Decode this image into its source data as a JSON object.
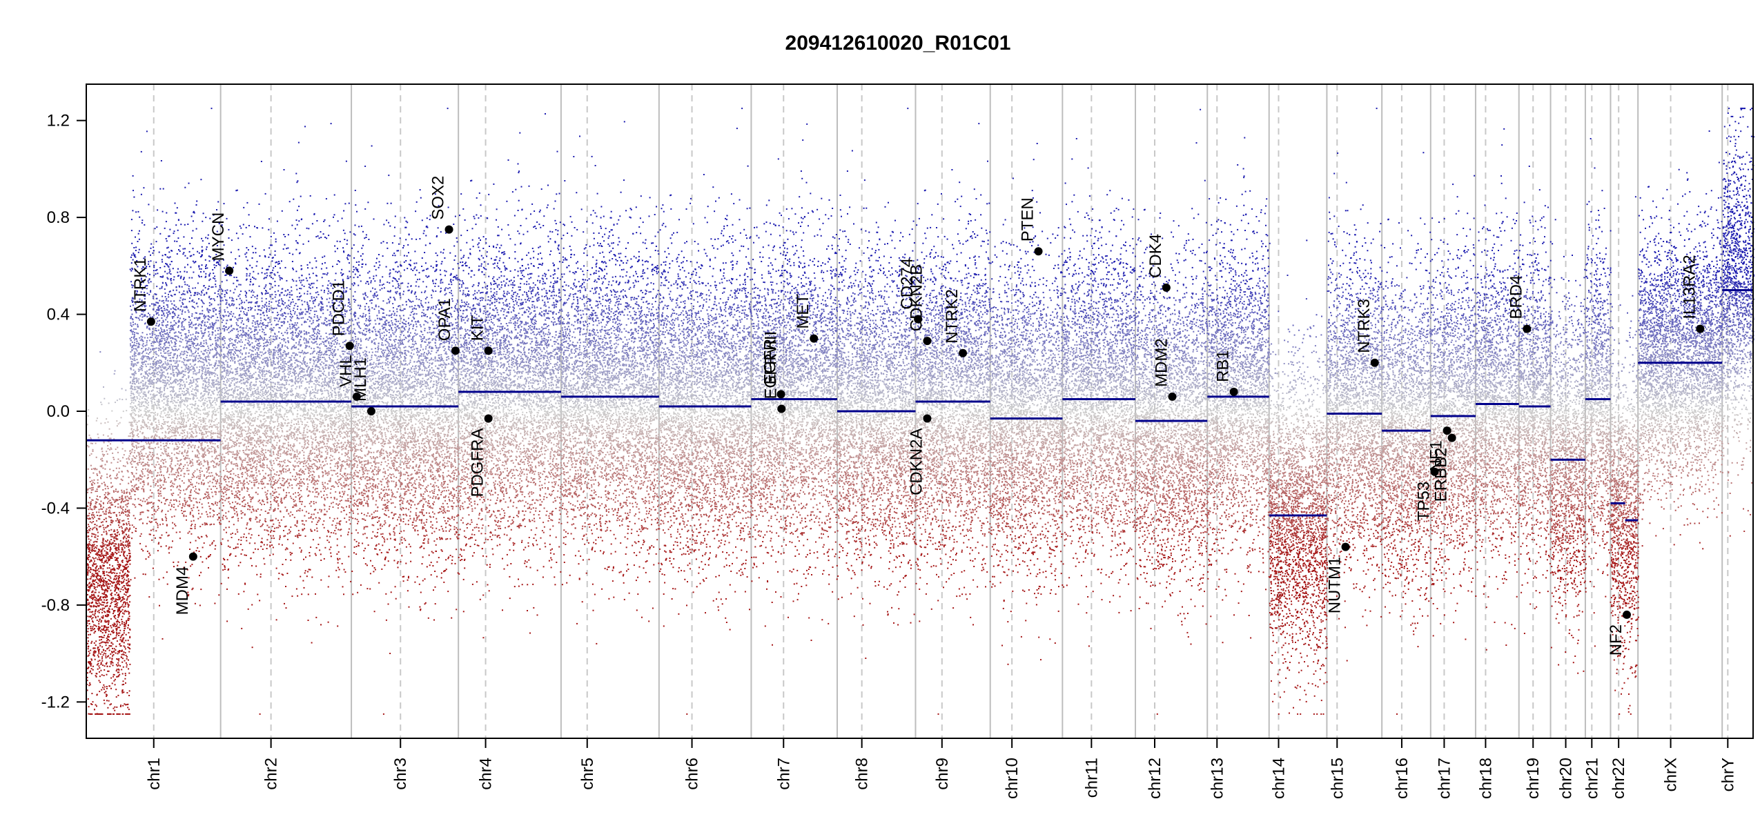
{
  "chart_data": {
    "type": "scatter",
    "title": "209412610020_R01C01",
    "xlabel": "",
    "ylabel": "",
    "ylim": [
      -1.35,
      1.35
    ],
    "yticks": [
      -1.2,
      -0.8,
      -0.4,
      0.0,
      0.4,
      0.8,
      1.2
    ],
    "ytick_labels": [
      "-1.2",
      "-0.8",
      "-0.4",
      "0.0",
      "0.4",
      "0.8",
      "1.2"
    ],
    "colors": {
      "gain": "#1a1aa8",
      "loss": "#a81a1a",
      "neutral": "#c8c8c8",
      "segment": "#00008b",
      "gene": "#000000"
    },
    "chromosomes": [
      {
        "name": "chr1",
        "start": 0.0,
        "end": 248.9,
        "centromere": 125.0
      },
      {
        "name": "chr2",
        "start": 248.9,
        "end": 491.1,
        "centromere": 93.3
      },
      {
        "name": "chr3",
        "start": 491.1,
        "end": 689.4,
        "centromere": 91.0
      },
      {
        "name": "chr4",
        "start": 689.4,
        "end": 879.6,
        "centromere": 50.4
      },
      {
        "name": "chr5",
        "start": 879.6,
        "end": 1061.1,
        "centromere": 48.4
      },
      {
        "name": "chr6",
        "start": 1061.1,
        "end": 1231.9,
        "centromere": 61.0
      },
      {
        "name": "chr7",
        "start": 1231.9,
        "end": 1391.2,
        "centromere": 59.9
      },
      {
        "name": "chr8",
        "start": 1391.2,
        "end": 1536.3,
        "centromere": 45.6
      },
      {
        "name": "chr9",
        "start": 1536.3,
        "end": 1674.7,
        "centromere": 49.0
      },
      {
        "name": "chr10",
        "start": 1674.7,
        "end": 1808.5,
        "centromere": 40.2
      },
      {
        "name": "chr11",
        "start": 1808.5,
        "end": 1943.6,
        "centromere": 53.7
      },
      {
        "name": "chr12",
        "start": 1943.6,
        "end": 2076.9,
        "centromere": 35.8
      },
      {
        "name": "chr13",
        "start": 2076.9,
        "end": 2191.3,
        "centromere": 17.9
      },
      {
        "name": "chr14",
        "start": 2191.3,
        "end": 2298.3,
        "centromere": 17.6
      },
      {
        "name": "chr15",
        "start": 2298.3,
        "end": 2400.3,
        "centromere": 19.0
      },
      {
        "name": "chr16",
        "start": 2400.3,
        "end": 2490.6,
        "centromere": 36.8
      },
      {
        "name": "chr17",
        "start": 2490.6,
        "end": 2573.9,
        "centromere": 25.1
      },
      {
        "name": "chr18",
        "start": 2573.9,
        "end": 2654.2,
        "centromere": 18.5
      },
      {
        "name": "chr19",
        "start": 2654.2,
        "end": 2712.8,
        "centromere": 26.2
      },
      {
        "name": "chr20",
        "start": 2712.8,
        "end": 2777.2,
        "centromere": 28.1
      },
      {
        "name": "chr21",
        "start": 2777.2,
        "end": 2823.9,
        "centromere": 12.0
      },
      {
        "name": "chr22",
        "start": 2823.9,
        "end": 2874.7,
        "centromere": 15.0
      },
      {
        "name": "chrX",
        "start": 2874.7,
        "end": 3030.7,
        "centromere": 60.6
      },
      {
        "name": "chrY",
        "start": 3030.7,
        "end": 3088.0,
        "centromere": 10.4
      }
    ],
    "segments": [
      {
        "start": 0.0,
        "end": 248.9,
        "value": -0.12
      },
      {
        "start": 248.9,
        "end": 491.1,
        "value": 0.04
      },
      {
        "start": 491.1,
        "end": 689.4,
        "value": 0.02
      },
      {
        "start": 689.4,
        "end": 879.6,
        "value": 0.08
      },
      {
        "start": 879.6,
        "end": 1061.1,
        "value": 0.06
      },
      {
        "start": 1061.1,
        "end": 1231.9,
        "value": 0.02
      },
      {
        "start": 1231.9,
        "end": 1391.2,
        "value": 0.05
      },
      {
        "start": 1391.2,
        "end": 1536.3,
        "value": 0.0
      },
      {
        "start": 1536.3,
        "end": 1674.7,
        "value": 0.04
      },
      {
        "start": 1674.7,
        "end": 1808.5,
        "value": -0.03
      },
      {
        "start": 1808.5,
        "end": 1943.6,
        "value": 0.05
      },
      {
        "start": 1943.6,
        "end": 2076.9,
        "value": -0.04
      },
      {
        "start": 2076.9,
        "end": 2191.3,
        "value": 0.06
      },
      {
        "start": 2191.3,
        "end": 2298.3,
        "value": -0.43
      },
      {
        "start": 2298.3,
        "end": 2400.3,
        "value": -0.01
      },
      {
        "start": 2400.3,
        "end": 2490.6,
        "value": -0.08
      },
      {
        "start": 2490.6,
        "end": 2573.9,
        "value": -0.02
      },
      {
        "start": 2573.9,
        "end": 2654.2,
        "value": 0.03
      },
      {
        "start": 2654.2,
        "end": 2712.8,
        "value": 0.02
      },
      {
        "start": 2712.8,
        "end": 2777.2,
        "value": -0.2
      },
      {
        "start": 2777.2,
        "end": 2823.9,
        "value": 0.05
      },
      {
        "start": 2823.9,
        "end": 2851.0,
        "value": -0.38
      },
      {
        "start": 2851.0,
        "end": 2874.7,
        "value": -0.45
      },
      {
        "start": 2874.7,
        "end": 3030.7,
        "value": 0.2
      },
      {
        "start": 3030.7,
        "end": 3088.0,
        "value": 0.5
      }
    ],
    "probe_profiles": [
      {
        "chr": "chr1",
        "from": 0.0,
        "to": 80.0,
        "mean": -0.68,
        "sd": 0.28
      },
      {
        "chr": "chr1",
        "from": 80.0,
        "to": 248.9,
        "mean": 0.08,
        "sd": 0.3
      },
      {
        "chr": "chr2",
        "from": 0.0,
        "to": 242.2,
        "mean": 0.04,
        "sd": 0.3
      },
      {
        "chr": "chr3",
        "from": 0.0,
        "to": 198.3,
        "mean": 0.02,
        "sd": 0.3
      },
      {
        "chr": "chr4",
        "from": 0.0,
        "to": 190.2,
        "mean": 0.08,
        "sd": 0.3
      },
      {
        "chr": "chr5",
        "from": 0.0,
        "to": 181.5,
        "mean": 0.06,
        "sd": 0.3
      },
      {
        "chr": "chr6",
        "from": 0.0,
        "to": 170.8,
        "mean": 0.02,
        "sd": 0.3
      },
      {
        "chr": "chr7",
        "from": 0.0,
        "to": 159.3,
        "mean": 0.05,
        "sd": 0.3
      },
      {
        "chr": "chr8",
        "from": 0.0,
        "to": 145.1,
        "mean": 0.0,
        "sd": 0.3
      },
      {
        "chr": "chr9",
        "from": 0.0,
        "to": 138.4,
        "mean": 0.04,
        "sd": 0.3
      },
      {
        "chr": "chr10",
        "from": 0.0,
        "to": 133.8,
        "mean": -0.03,
        "sd": 0.3
      },
      {
        "chr": "chr11",
        "from": 0.0,
        "to": 135.1,
        "mean": 0.05,
        "sd": 0.3
      },
      {
        "chr": "chr12",
        "from": 0.0,
        "to": 133.3,
        "mean": -0.04,
        "sd": 0.3
      },
      {
        "chr": "chr13",
        "from": 0.0,
        "to": 114.4,
        "mean": 0.06,
        "sd": 0.3
      },
      {
        "chr": "chr14",
        "from": 0.0,
        "to": 107.0,
        "mean": -0.43,
        "sd": 0.3
      },
      {
        "chr": "chr15",
        "from": 0.0,
        "to": 102.0,
        "mean": -0.01,
        "sd": 0.3
      },
      {
        "chr": "chr16",
        "from": 0.0,
        "to": 90.3,
        "mean": -0.08,
        "sd": 0.3
      },
      {
        "chr": "chr17",
        "from": 0.0,
        "to": 83.3,
        "mean": -0.02,
        "sd": 0.3
      },
      {
        "chr": "chr18",
        "from": 0.0,
        "to": 80.3,
        "mean": 0.03,
        "sd": 0.3
      },
      {
        "chr": "chr19",
        "from": 0.0,
        "to": 58.6,
        "mean": 0.02,
        "sd": 0.3
      },
      {
        "chr": "chr20",
        "from": 0.0,
        "to": 64.4,
        "mean": -0.2,
        "sd": 0.3
      },
      {
        "chr": "chr21",
        "from": 0.0,
        "to": 46.7,
        "mean": 0.05,
        "sd": 0.3
      },
      {
        "chr": "chr22",
        "from": 0.0,
        "to": 50.8,
        "mean": -0.4,
        "sd": 0.3
      },
      {
        "chr": "chrX",
        "from": 0.0,
        "to": 156.0,
        "mean": 0.2,
        "sd": 0.25
      },
      {
        "chr": "chrY",
        "from": 0.0,
        "to": 57.3,
        "mean": 0.5,
        "sd": 0.3
      }
    ],
    "genes": [
      {
        "name": "NTRK1",
        "pos": 120.0,
        "value": 0.37,
        "label_side": "above"
      },
      {
        "name": "MDM4",
        "pos": 198.0,
        "value": -0.6,
        "label_side": "below"
      },
      {
        "name": "MYCN",
        "pos": 264.9,
        "value": 0.58,
        "label_side": "above"
      },
      {
        "name": "PDCD1",
        "pos": 488.0,
        "value": 0.27,
        "label_side": "above"
      },
      {
        "name": "VHL",
        "pos": 501.0,
        "value": 0.06,
        "label_side": "above"
      },
      {
        "name": "MLH1",
        "pos": 528.0,
        "value": 0.0,
        "label_side": "above"
      },
      {
        "name": "SOX2",
        "pos": 672.0,
        "value": 0.75,
        "label_side": "above"
      },
      {
        "name": "OPA1",
        "pos": 684.0,
        "value": 0.25,
        "label_side": "above"
      },
      {
        "name": "KIT",
        "pos": 745.0,
        "value": 0.25,
        "label_side": "above"
      },
      {
        "name": "PDGFRA",
        "pos": 745.0,
        "value": -0.03,
        "label_side": "below"
      },
      {
        "name": "EGFR",
        "pos": 1287.0,
        "value": 0.07,
        "label_side": "above"
      },
      {
        "name": "EGFRvIII",
        "pos": 1288.0,
        "value": 0.01,
        "label_side": "above"
      },
      {
        "name": "MET",
        "pos": 1348.0,
        "value": 0.3,
        "label_side": "above"
      },
      {
        "name": "CD274",
        "pos": 1541.0,
        "value": 0.38,
        "label_side": "above"
      },
      {
        "name": "CDKN2B",
        "pos": 1558.0,
        "value": 0.29,
        "label_side": "above"
      },
      {
        "name": "CDKN2A",
        "pos": 1558.0,
        "value": -0.03,
        "label_side": "below"
      },
      {
        "name": "NTRK2",
        "pos": 1624.0,
        "value": 0.24,
        "label_side": "above"
      },
      {
        "name": "PTEN",
        "pos": 1764.0,
        "value": 0.66,
        "label_side": "above"
      },
      {
        "name": "CDK4",
        "pos": 2001.0,
        "value": 0.51,
        "label_side": "above"
      },
      {
        "name": "MDM2",
        "pos": 2012.0,
        "value": 0.06,
        "label_side": "above"
      },
      {
        "name": "RB1",
        "pos": 2126.0,
        "value": 0.08,
        "label_side": "above"
      },
      {
        "name": "NUTM1",
        "pos": 2333.0,
        "value": -0.56,
        "label_side": "below"
      },
      {
        "name": "NTRK3",
        "pos": 2387.0,
        "value": 0.2,
        "label_side": "above"
      },
      {
        "name": "TP53",
        "pos": 2498.0,
        "value": -0.25,
        "label_side": "below"
      },
      {
        "name": "NF1",
        "pos": 2521.0,
        "value": -0.08,
        "label_side": "below"
      },
      {
        "name": "ERBB2",
        "pos": 2530.0,
        "value": -0.11,
        "label_side": "below"
      },
      {
        "name": "BRD4",
        "pos": 2669.0,
        "value": 0.34,
        "label_side": "above"
      },
      {
        "name": "NF2",
        "pos": 2854.0,
        "value": -0.84,
        "label_side": "below"
      },
      {
        "name": "IL13RA2",
        "pos": 2990.0,
        "value": 0.34,
        "label_side": "above"
      }
    ]
  }
}
